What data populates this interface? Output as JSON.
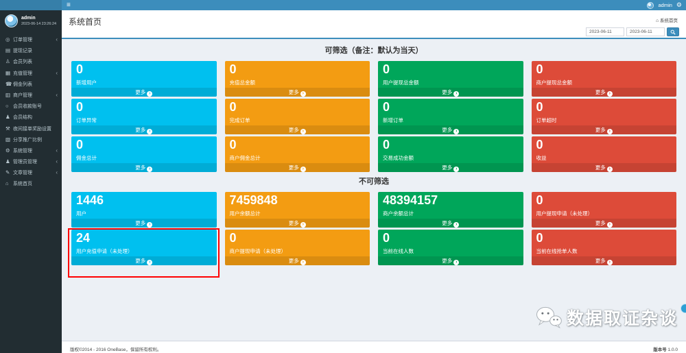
{
  "colors": {
    "aqua": "#00c0ef",
    "orange": "#f39c12",
    "green": "#00a65a",
    "red": "#dd4b39",
    "topbar": "#3c8dbc",
    "sidebar": "#222d32",
    "content_bg": "#ecf0f5",
    "highlight_box": "#ff0000"
  },
  "topbar": {
    "hamburger_icon": "≡",
    "username": "admin",
    "gear_icon": "⚙"
  },
  "sidebar": {
    "user": {
      "name": "admin",
      "login_time": "2023-06-14 23:26:24"
    },
    "items": [
      {
        "icon": "◎",
        "icon_name": "orders-icon",
        "label": "订单管理",
        "children": true
      },
      {
        "icon": "▤",
        "icon_name": "withdraw-record-icon",
        "label": "提现记录",
        "children": false
      },
      {
        "icon": "♙",
        "icon_name": "member-list-icon",
        "label": "会员列表",
        "children": false
      },
      {
        "icon": "▦",
        "icon_name": "recharge-icon",
        "label": "充值管理",
        "children": true
      },
      {
        "icon": "☎",
        "icon_name": "commission-list-icon",
        "label": "佣金列表",
        "children": false
      },
      {
        "icon": "▥",
        "icon_name": "merchant-icon",
        "label": "商户管理",
        "children": true
      },
      {
        "icon": "○",
        "icon_name": "member-account-icon",
        "label": "会员收款账号",
        "children": false
      },
      {
        "icon": "♟",
        "icon_name": "member-structure-icon",
        "label": "会员结构",
        "children": false
      },
      {
        "icon": "⚒",
        "icon_name": "night-reward-icon",
        "label": "夜间接单奖励设置",
        "children": false
      },
      {
        "icon": "▧",
        "icon_name": "share-ratio-icon",
        "label": "分享推广比例",
        "children": false
      },
      {
        "icon": "⚙",
        "icon_name": "system-settings-icon",
        "label": "系统管理",
        "children": true
      },
      {
        "icon": "♟",
        "icon_name": "admin-manage-icon",
        "label": "管理员管理",
        "children": true
      },
      {
        "icon": "✎",
        "icon_name": "article-icon",
        "label": "文章管理",
        "children": true
      },
      {
        "icon": "⌂",
        "icon_name": "home-icon",
        "label": "系统首页",
        "children": false
      }
    ],
    "chevron_icon": "‹"
  },
  "header": {
    "title": "系统首页",
    "breadcrumb_home_icon": "⌂",
    "breadcrumb": "系统首页",
    "date_from": "2023-06-11",
    "date_to": "2023-06-11",
    "search_icon": "magnifier"
  },
  "cards_more_label": "更多",
  "sections": [
    {
      "title": "可筛选（备注：默认为当天）",
      "cards": [
        {
          "value": "0",
          "label": "新增用户",
          "color": "aqua"
        },
        {
          "value": "0",
          "label": "充值总金额",
          "color": "orange"
        },
        {
          "value": "0",
          "label": "用户提现总金额",
          "color": "green"
        },
        {
          "value": "0",
          "label": "商户提现总金额",
          "color": "red"
        },
        {
          "value": "0",
          "label": "订单异常",
          "color": "aqua"
        },
        {
          "value": "0",
          "label": "完成订单",
          "color": "orange"
        },
        {
          "value": "0",
          "label": "新增订单",
          "color": "green"
        },
        {
          "value": "0",
          "label": "订单超时",
          "color": "red"
        },
        {
          "value": "0",
          "label": "佣金总计",
          "color": "aqua"
        },
        {
          "value": "0",
          "label": "商户佣金总计",
          "color": "orange"
        },
        {
          "value": "0",
          "label": "交易成功金额",
          "color": "green"
        },
        {
          "value": "0",
          "label": "收益",
          "color": "red"
        }
      ]
    },
    {
      "title": "不可筛选",
      "cards": [
        {
          "value": "1446",
          "label": "用户",
          "color": "aqua"
        },
        {
          "value": "7459848",
          "label": "用户余额总计",
          "color": "orange"
        },
        {
          "value": "48394157",
          "label": "商户余额总计",
          "color": "green"
        },
        {
          "value": "0",
          "label": "用户提现申请（未处理）",
          "color": "red"
        },
        {
          "value": "24",
          "label": "用户充值申请（未处理）",
          "color": "aqua",
          "highlighted": true
        },
        {
          "value": "0",
          "label": "商户提现申请（未处理）",
          "color": "orange"
        },
        {
          "value": "0",
          "label": "当前在线人数",
          "color": "green"
        },
        {
          "value": "0",
          "label": "当前在线抢单人数",
          "color": "red"
        }
      ]
    }
  ],
  "watermark": {
    "text": "数据取证杂谈",
    "logo": "chat-bubbles-logo"
  },
  "footer": {
    "copyright": "版权©2014 - 2016 OneBase，保留所有权利。",
    "version_label": "版本号",
    "version": "1.0.0"
  }
}
